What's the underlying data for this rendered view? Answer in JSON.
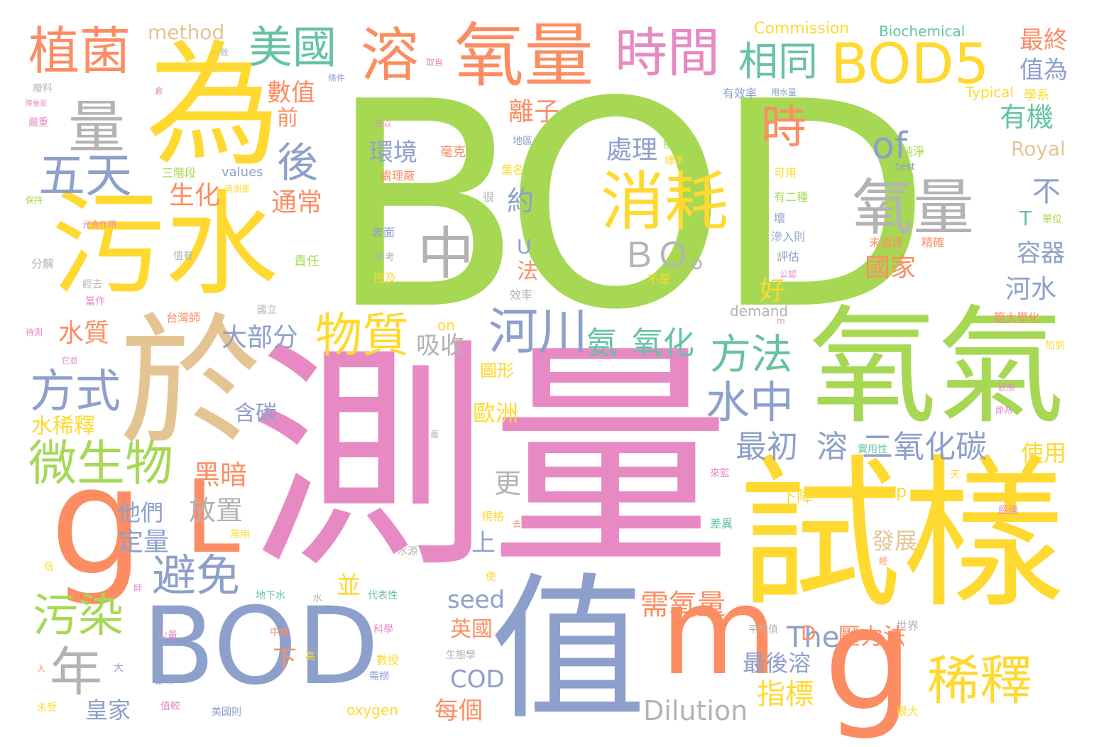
{
  "words": [
    {
      "text": "BOD",
      "color": "green"
    },
    {
      "text": "測量",
      "color": "pink"
    },
    {
      "text": "試樣",
      "color": "yellow"
    },
    {
      "text": "BOD",
      "color": "blue"
    },
    {
      "text": "值",
      "color": "blue"
    },
    {
      "text": "氧氣",
      "color": "green"
    },
    {
      "text": "為",
      "color": "yellow"
    },
    {
      "text": "污水",
      "color": "yellow"
    },
    {
      "text": "於",
      "color": "tan"
    },
    {
      "text": "g",
      "color": "orange"
    },
    {
      "text": "g",
      "color": "orange"
    },
    {
      "text": "m",
      "color": "orange"
    },
    {
      "text": "L",
      "color": "orange"
    },
    {
      "text": "氧量",
      "color": "orange"
    },
    {
      "text": "氧量",
      "color": "grey"
    },
    {
      "text": "BOD5",
      "color": "yellow"
    },
    {
      "text": "時間",
      "color": "pink"
    },
    {
      "text": "溶",
      "color": "orange"
    },
    {
      "text": "植菌",
      "color": "orange"
    },
    {
      "text": "美國",
      "color": "teal"
    },
    {
      "text": "消耗",
      "color": "yellow"
    },
    {
      "text": "量",
      "color": "grey"
    },
    {
      "text": "五天",
      "color": "blue"
    },
    {
      "text": "稀釋",
      "color": "yellow"
    },
    {
      "text": "年",
      "color": "grey"
    },
    {
      "text": "微生物",
      "color": "green"
    },
    {
      "text": "方式",
      "color": "blue"
    },
    {
      "text": "污染",
      "color": "green"
    },
    {
      "text": "避免",
      "color": "blue"
    },
    {
      "text": "河川",
      "color": "blue"
    },
    {
      "text": "物質",
      "color": "yellow"
    },
    {
      "text": "方法",
      "color": "teal"
    },
    {
      "text": "水中",
      "color": "blue"
    },
    {
      "text": "中",
      "color": "grey"
    },
    {
      "text": "相同",
      "color": "teal"
    },
    {
      "text": "時",
      "color": "orange"
    },
    {
      "text": "後",
      "color": "blue"
    },
    {
      "text": "of",
      "color": "blue"
    },
    {
      "text": "ＢＯ。",
      "color": "grey"
    },
    {
      "text": "二氧化碳",
      "color": "blue"
    },
    {
      "text": "最初",
      "color": "blue"
    },
    {
      "text": "溶",
      "color": "blue"
    },
    {
      "text": "氨",
      "color": "teal"
    },
    {
      "text": "氧化",
      "color": "teal"
    },
    {
      "text": "有機",
      "color": "teal"
    },
    {
      "text": "最終",
      "color": "orange"
    },
    {
      "text": "值為",
      "color": "blue"
    },
    {
      "text": "數值",
      "color": "orange"
    },
    {
      "text": "離子",
      "color": "orange"
    },
    {
      "text": "生化",
      "color": "orange"
    },
    {
      "text": "通常",
      "color": "orange"
    },
    {
      "text": "環境",
      "color": "blue"
    },
    {
      "text": "處理",
      "color": "blue"
    },
    {
      "text": "大部分",
      "color": "blue"
    },
    {
      "text": "吸收",
      "color": "grey"
    },
    {
      "text": "國家",
      "color": "orange"
    },
    {
      "text": "容器",
      "color": "blue"
    },
    {
      "text": "河水",
      "color": "blue"
    },
    {
      "text": "水質",
      "color": "orange"
    },
    {
      "text": "需氧量",
      "color": "orange"
    },
    {
      "text": "最後溶",
      "color": "blue"
    },
    {
      "text": "指標",
      "color": "yellow"
    },
    {
      "text": "Dilution",
      "color": "grey"
    },
    {
      "text": "The",
      "color": "blue"
    },
    {
      "text": "壓力法",
      "color": "orange"
    },
    {
      "text": "seed",
      "color": "blue"
    },
    {
      "text": "COD",
      "color": "blue"
    },
    {
      "text": "英國",
      "color": "orange"
    },
    {
      "text": "每個",
      "color": "orange"
    },
    {
      "text": "皇家",
      "color": "blue"
    },
    {
      "text": "黑暗",
      "color": "orange"
    },
    {
      "text": "放置",
      "color": "grey"
    },
    {
      "text": "定量",
      "color": "blue"
    },
    {
      "text": "他們",
      "color": "blue"
    },
    {
      "text": "含碳",
      "color": "blue"
    },
    {
      "text": "歐洲",
      "color": "yellow"
    },
    {
      "text": "水稀釋",
      "color": "yellow"
    },
    {
      "text": "使用",
      "color": "yellow"
    },
    {
      "text": "發展",
      "color": "tan"
    },
    {
      "text": "Commission",
      "color": "yellow"
    },
    {
      "text": "Biochemical",
      "color": "teal"
    },
    {
      "text": "method",
      "color": "tan"
    },
    {
      "text": "Royal",
      "color": "tan"
    },
    {
      "text": "Typical",
      "color": "yellow"
    },
    {
      "text": "values",
      "color": "blue"
    },
    {
      "text": "demand",
      "color": "grey"
    },
    {
      "text": "oxygen",
      "color": "yellow"
    },
    {
      "text": "test",
      "color": "blue"
    },
    {
      "text": "on",
      "color": "yellow"
    },
    {
      "text": "約",
      "color": "blue"
    },
    {
      "text": "不",
      "color": "blue"
    },
    {
      "text": "好",
      "color": "yellow"
    },
    {
      "text": "前",
      "color": "orange"
    },
    {
      "text": "法",
      "color": "orange"
    },
    {
      "text": "U",
      "color": "blue"
    },
    {
      "text": "T",
      "color": "teal"
    },
    {
      "text": "D",
      "color": "orange"
    },
    {
      "text": "p",
      "color": "yellow"
    },
    {
      "text": "更",
      "color": "grey"
    },
    {
      "text": "上",
      "color": "blue"
    },
    {
      "text": "並",
      "color": "yellow"
    },
    {
      "text": "下",
      "color": "orange"
    },
    {
      "text": "下降",
      "color": "yellow"
    },
    {
      "text": "圖形",
      "color": "yellow"
    },
    {
      "text": "有效率",
      "color": "blue"
    },
    {
      "text": "用水量",
      "color": "blue"
    },
    {
      "text": "學系",
      "color": "yellow"
    },
    {
      "text": "處理廠",
      "color": "orange"
    },
    {
      "text": "毫克",
      "color": "orange"
    },
    {
      "text": "三階段",
      "color": "green"
    },
    {
      "text": "台灣師",
      "color": "orange"
    },
    {
      "text": "範大學化",
      "color": "orange"
    },
    {
      "text": "未處理",
      "color": "orange"
    },
    {
      "text": "單位",
      "color": "green"
    },
    {
      "text": "地區",
      "color": "blue"
    },
    {
      "text": "可用",
      "color": "yellow"
    },
    {
      "text": "有二種",
      "color": "green"
    },
    {
      "text": "評估",
      "color": "blue"
    },
    {
      "text": "公認",
      "color": "pink"
    },
    {
      "text": "精確",
      "color": "orange"
    },
    {
      "text": "責任",
      "color": "green"
    },
    {
      "text": "控及",
      "color": "yellow"
    },
    {
      "text": "參考",
      "color": "grey"
    },
    {
      "text": "表面",
      "color": "blue"
    },
    {
      "text": "效率",
      "color": "grey"
    },
    {
      "text": "國立",
      "color": "grey"
    },
    {
      "text": "經去",
      "color": "grey"
    },
    {
      "text": "分解",
      "color": "grey"
    },
    {
      "text": "值有",
      "color": "grey"
    },
    {
      "text": "當作",
      "color": "pink"
    },
    {
      "text": "待測",
      "color": "pink"
    },
    {
      "text": "它並",
      "color": "pink"
    },
    {
      "text": "保持",
      "color": "green"
    },
    {
      "text": "光合作用",
      "color": "pink"
    },
    {
      "text": "值測量",
      "color": "yellow"
    },
    {
      "text": "一致",
      "color": "grey"
    },
    {
      "text": "取自",
      "color": "pink"
    },
    {
      "text": "條件",
      "color": "blue"
    },
    {
      "text": "廢料",
      "color": "grey"
    },
    {
      "text": "嚴重",
      "color": "pink"
    },
    {
      "text": "降後是",
      "color": "pink"
    },
    {
      "text": "倉",
      "color": "pink"
    },
    {
      "text": "先以",
      "color": "pink"
    },
    {
      "text": "來監",
      "color": "pink"
    },
    {
      "text": "差異",
      "color": "teal"
    },
    {
      "text": "規格",
      "color": "yellow"
    },
    {
      "text": "常用",
      "color": "yellow"
    },
    {
      "text": "水源",
      "color": "grey"
    },
    {
      "text": "地下水",
      "color": "teal"
    },
    {
      "text": "代表性",
      "color": "teal"
    },
    {
      "text": "科學",
      "color": "pink"
    },
    {
      "text": "中度",
      "color": "orange"
    },
    {
      "text": "少量",
      "color": "pink"
    },
    {
      "text": "數授",
      "color": "yellow"
    },
    {
      "text": "生態學",
      "color": "grey"
    },
    {
      "text": "需撈",
      "color": "blue"
    },
    {
      "text": "都市",
      "color": "blue"
    },
    {
      "text": "值較",
      "color": "pink"
    },
    {
      "text": "美國則",
      "color": "blue"
    },
    {
      "text": "未受",
      "color": "yellow"
    },
    {
      "text": "平均值",
      "color": "grey"
    },
    {
      "text": "世界",
      "color": "grey"
    },
    {
      "text": "很大",
      "color": "yellow"
    },
    {
      "text": "經過",
      "color": "pink"
    },
    {
      "text": "即為",
      "color": "pink"
    },
    {
      "text": "加到",
      "color": "yellow"
    },
    {
      "text": "狀態",
      "color": "pink"
    },
    {
      "text": "實用性",
      "color": "teal"
    },
    {
      "text": "純淨",
      "color": "green"
    },
    {
      "text": "標準",
      "color": "yellow"
    },
    {
      "text": "檢測",
      "color": "green"
    },
    {
      "text": "葉名",
      "color": "yellow"
    },
    {
      "text": "不是",
      "color": "yellow"
    },
    {
      "text": "滲入則",
      "color": "blue"
    },
    {
      "text": "壞",
      "color": "blue"
    },
    {
      "text": "很",
      "color": "grey"
    },
    {
      "text": "天",
      "color": "yellow"
    },
    {
      "text": "去",
      "color": "orange"
    },
    {
      "text": "使",
      "color": "yellow"
    },
    {
      "text": "水",
      "color": "grey"
    },
    {
      "text": "大",
      "color": "blue"
    },
    {
      "text": "人",
      "color": "orange"
    },
    {
      "text": "低",
      "color": "yellow"
    },
    {
      "text": "高",
      "color": "yellow"
    },
    {
      "text": "師",
      "color": "pink"
    },
    {
      "text": "經",
      "color": "orange"
    },
    {
      "text": "最",
      "color": "grey"
    },
    {
      "text": "m",
      "color": "pink"
    }
  ]
}
